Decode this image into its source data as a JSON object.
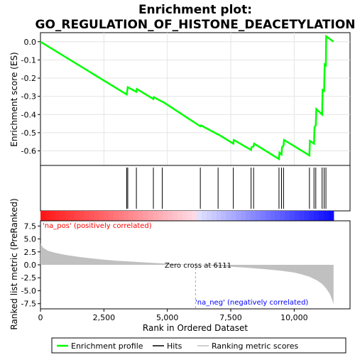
{
  "chart_data": {
    "type": "line",
    "title": "Enrichment plot:\nGO_REGULATION_OF_HISTONE_DEACETYLATION",
    "title_lines": [
      "Enrichment plot:",
      "GO_REGULATION_OF_HISTONE_DEACETYLATION"
    ],
    "es_panel": {
      "ylabel": "Enrichment score (ES)",
      "ylim": [
        -0.68,
        0.05
      ],
      "yticks": [
        0.0,
        -0.1,
        -0.2,
        -0.3,
        -0.4,
        -0.5,
        -0.6
      ],
      "ytick_labels": [
        "0.0",
        "-0.1",
        "-0.2",
        "-0.3",
        "-0.4",
        "-0.5",
        "-0.6"
      ],
      "grid": true,
      "line_color": "#00ff00",
      "x": [
        0,
        3400,
        3420,
        3440,
        3780,
        3800,
        4450,
        4470,
        4800,
        4820,
        6300,
        6330,
        7000,
        7020,
        7600,
        7620,
        8300,
        8320,
        8400,
        8420,
        9400,
        9420,
        9500,
        9520,
        9580,
        9600,
        10600,
        10620,
        10780,
        10800,
        10850,
        10870,
        11100,
        11120,
        11180,
        11200,
        11250,
        11260,
        11550
      ],
      "y": [
        0.0,
        -0.29,
        -0.27,
        -0.25,
        -0.275,
        -0.26,
        -0.315,
        -0.305,
        -0.33,
        -0.33,
        -0.465,
        -0.46,
        -0.51,
        -0.51,
        -0.56,
        -0.54,
        -0.595,
        -0.58,
        -0.575,
        -0.56,
        -0.645,
        -0.61,
        -0.62,
        -0.58,
        -0.57,
        -0.54,
        -0.625,
        -0.545,
        -0.56,
        -0.47,
        -0.46,
        -0.37,
        -0.4,
        -0.265,
        -0.27,
        -0.125,
        -0.13,
        0.03,
        0.0
      ]
    },
    "hits": [
      3400,
      3440,
      3780,
      4450,
      4800,
      6300,
      7000,
      7600,
      8300,
      8400,
      9400,
      9500,
      9580,
      10600,
      10780,
      10850,
      11100,
      11180,
      11250
    ],
    "metric_panel": {
      "ylabel": "Ranked list metric (PreRanked)",
      "xlabel": "Rank in Ordered Dataset",
      "ylim": [
        -8.5,
        8.5
      ],
      "yticks": [
        7.5,
        5.0,
        2.5,
        0.0,
        -2.5,
        -5.0,
        -7.5
      ],
      "ytick_labels": [
        "7.5",
        "5.0",
        "2.5",
        "0.0",
        "-2.5",
        "-5.0",
        "-7.5"
      ],
      "xticks": [
        0,
        2500,
        5000,
        7500,
        10000
      ],
      "xtick_labels": [
        "0",
        "2,500",
        "5,000",
        "7,500",
        "10,000"
      ],
      "xlim": [
        0,
        12200
      ],
      "rank_x": [
        0,
        100,
        300,
        600,
        1000,
        1500,
        2000,
        2500,
        3000,
        3500,
        4000,
        4500,
        5000,
        5500,
        6111,
        6500,
        7000,
        7500,
        8000,
        8500,
        9000,
        9500,
        10000,
        10300,
        10600,
        10900,
        11100,
        11250,
        11400,
        11500,
        11550
      ],
      "rank_y": [
        4.1,
        3.3,
        2.7,
        2.3,
        1.9,
        1.55,
        1.25,
        1.0,
        0.8,
        0.65,
        0.5,
        0.35,
        0.22,
        0.1,
        0.0,
        -0.12,
        -0.25,
        -0.38,
        -0.52,
        -0.7,
        -0.9,
        -1.15,
        -1.5,
        -1.85,
        -2.3,
        -3.0,
        -3.7,
        -4.5,
        -5.6,
        -6.8,
        -7.6
      ],
      "fill_color": "#c0c0c0",
      "zero_cross_label": "Zero cross at 6111",
      "zero_cross": 6111,
      "pos_label": "'na_pos' (positively correlated)",
      "neg_label": "'na_neg' (negatively correlated)",
      "pos_color": "#ff0000",
      "neg_color": "#0000ff"
    },
    "legend": {
      "placement": "bottom",
      "entries": [
        {
          "label": "Enrichment profile",
          "color": "#00ff00"
        },
        {
          "label": "Hits",
          "color": "#000000"
        },
        {
          "label": "Ranking metric scores",
          "color": "#c0c0c0"
        }
      ]
    }
  }
}
